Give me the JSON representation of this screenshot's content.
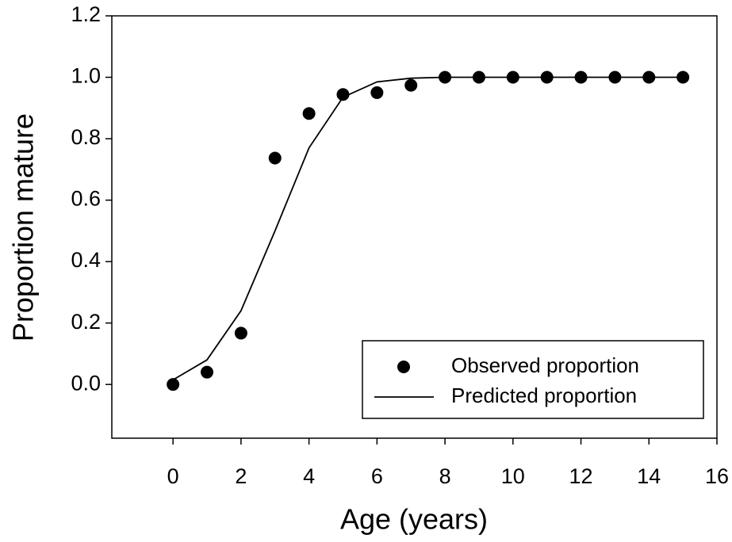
{
  "chart_data": {
    "type": "line",
    "x_label": "Age (years)",
    "y_label": "Proportion mature",
    "xlim": [
      -1.8,
      16
    ],
    "ylim": [
      -0.175,
      1.2
    ],
    "xticks": [
      0,
      2,
      4,
      6,
      8,
      10,
      12,
      14,
      16
    ],
    "yticks": [
      {
        "value": 0,
        "label": "0.0"
      },
      {
        "value": 0.2,
        "label": "0.2"
      },
      {
        "value": 0.4,
        "label": "0.4"
      },
      {
        "value": 0.6,
        "label": "0.6"
      },
      {
        "value": 0.8,
        "label": "0.8"
      },
      {
        "value": 1,
        "label": "1.0"
      },
      {
        "value": 1.2,
        "label": "1.2"
      }
    ],
    "x": [
      0,
      1,
      2,
      3,
      4,
      5,
      6,
      7,
      8,
      9,
      10,
      11,
      12,
      13,
      14,
      15
    ],
    "series": [
      {
        "name": "Observed proportion",
        "color": "#000000",
        "mode": "markers",
        "values": [
          0.0,
          0.04,
          0.167,
          0.737,
          0.882,
          0.944,
          0.95,
          0.974,
          1.0,
          1.0,
          1.0,
          1.0,
          1.0,
          1.0,
          1.0,
          1.0
        ]
      },
      {
        "name": "Predicted proportion",
        "color": "#000000",
        "mode": "lines",
        "values": [
          0.015,
          0.08,
          0.24,
          0.5,
          0.77,
          0.935,
          0.985,
          0.997,
          1.0,
          1.0,
          1.0,
          1.0,
          1.0,
          1.0,
          1.0,
          1.0
        ]
      }
    ],
    "legend": "lower right"
  }
}
